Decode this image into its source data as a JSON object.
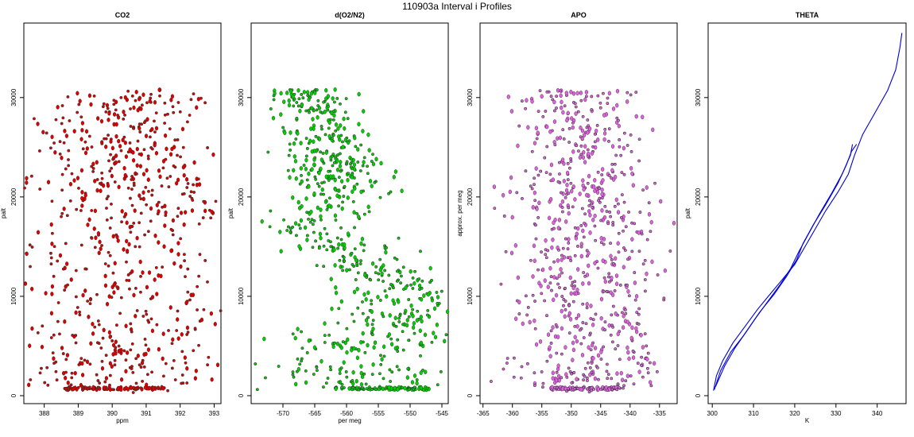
{
  "figure_title": "110903a   Interval i Profiles",
  "chart_data": [
    {
      "type": "scatter",
      "title": "CO2",
      "xlabel": "ppm",
      "ylabel": "palt",
      "xlim": [
        387.4,
        393.2
      ],
      "ylim": [
        -800,
        37500
      ],
      "xticks": [
        388,
        389,
        390,
        391,
        392,
        393
      ],
      "yticks": [
        0,
        10000,
        20000,
        30000
      ],
      "grid": false,
      "color": "#e00000",
      "profile": [
        [
          0,
          390.4,
          1.6
        ],
        [
          3000,
          390.0,
          1.7
        ],
        [
          6000,
          390.2,
          1.9
        ],
        [
          10000,
          390.3,
          1.9
        ],
        [
          14000,
          390.3,
          1.7
        ],
        [
          17000,
          390.4,
          1.6
        ],
        [
          20000,
          390.8,
          1.5
        ],
        [
          24000,
          390.5,
          1.3
        ],
        [
          27000,
          390.3,
          1.2
        ],
        [
          30500,
          390.5,
          1.0
        ]
      ],
      "notes": "approx. 1500 points; dense column at ~700 palt spanning 388.6–391.5 ppm"
    },
    {
      "type": "scatter",
      "title": "d(O2/N2)",
      "xlabel": "per meg",
      "ylabel": "palt",
      "xlim": [
        -575,
        -544
      ],
      "ylim": [
        -800,
        37500
      ],
      "xticks": [
        -570,
        -565,
        -560,
        -555,
        -550,
        -545
      ],
      "yticks": [
        0,
        10000,
        20000,
        30000
      ],
      "grid": false,
      "color": "#00d000",
      "profile": [
        [
          0,
          -557,
          7
        ],
        [
          2000,
          -559,
          7
        ],
        [
          5000,
          -558,
          6
        ],
        [
          8000,
          -551,
          6
        ],
        [
          10000,
          -550,
          5
        ],
        [
          12000,
          -553,
          5
        ],
        [
          15000,
          -561,
          4
        ],
        [
          17000,
          -566,
          4
        ],
        [
          20000,
          -561,
          4
        ],
        [
          23000,
          -561,
          4
        ],
        [
          26000,
          -563,
          4
        ],
        [
          28000,
          -564,
          3
        ],
        [
          30000,
          -566,
          3
        ]
      ],
      "notes": "approx. 1500 points; dense column at ~700 palt spanning -562 to -547"
    },
    {
      "type": "scatter",
      "title": "APO",
      "xlabel": "",
      "ylabel": "approx. per meg",
      "xlim": [
        -365.5,
        -332
      ],
      "ylim": [
        -800,
        37500
      ],
      "xticks": [
        -365,
        -360,
        -355,
        -350,
        -345,
        -340,
        -335
      ],
      "yticks": [
        0,
        10000,
        20000,
        30000
      ],
      "grid": false,
      "color": "#e060e0",
      "profile": [
        [
          0,
          -347,
          6
        ],
        [
          10000,
          -347,
          6
        ],
        [
          20000,
          -348,
          6
        ],
        [
          30500,
          -349,
          5
        ]
      ],
      "notes": "approx. 1500 points; dense column at ~700 palt spanning -353 to -342"
    },
    {
      "type": "line",
      "title": "THETA",
      "xlabel": "K",
      "ylabel": "palt",
      "xlim": [
        299,
        347
      ],
      "ylim": [
        -800,
        37500
      ],
      "xticks": [
        300,
        310,
        320,
        330,
        340
      ],
      "yticks": [
        0,
        10000,
        20000,
        30000
      ],
      "grid": false,
      "color": "#0000e0",
      "series": [
        {
          "x": [
            300.3,
            301.0,
            302.5,
            305.0,
            308.0,
            311.0,
            314.0,
            317.0,
            320.0,
            322.5,
            325.0,
            327.5,
            330.5,
            333.0,
            334.5,
            336.5,
            339.5,
            342.5,
            344.5,
            345.5,
            346.0
          ],
          "y": [
            500,
            2000,
            3500,
            5300,
            7000,
            8700,
            10200,
            11700,
            13200,
            15000,
            16800,
            18600,
            20500,
            22300,
            24200,
            26300,
            28500,
            30700,
            32800,
            35000,
            36500
          ]
        },
        {
          "x": [
            300.5,
            302.0,
            304.5,
            307.5,
            310.5,
            313.5,
            316.5,
            319.0,
            321.0,
            323.5,
            326.0,
            329.0,
            331.5,
            333.5,
            334.0
          ],
          "y": [
            600,
            2500,
            4400,
            6000,
            7800,
            9500,
            11200,
            12800,
            14500,
            16400,
            18300,
            20400,
            22300,
            24200,
            25300
          ]
        },
        {
          "x": [
            300.8,
            303.0,
            305.5,
            308.5,
            311.5,
            315.0,
            318.0,
            320.5,
            322.0,
            324.5,
            327.5,
            330.5,
            332.5,
            333.8,
            335.0
          ],
          "y": [
            900,
            3000,
            4800,
            6600,
            8400,
            10200,
            12000,
            13700,
            15300,
            17200,
            19200,
            21400,
            23200,
            24600,
            25300
          ]
        }
      ]
    }
  ]
}
